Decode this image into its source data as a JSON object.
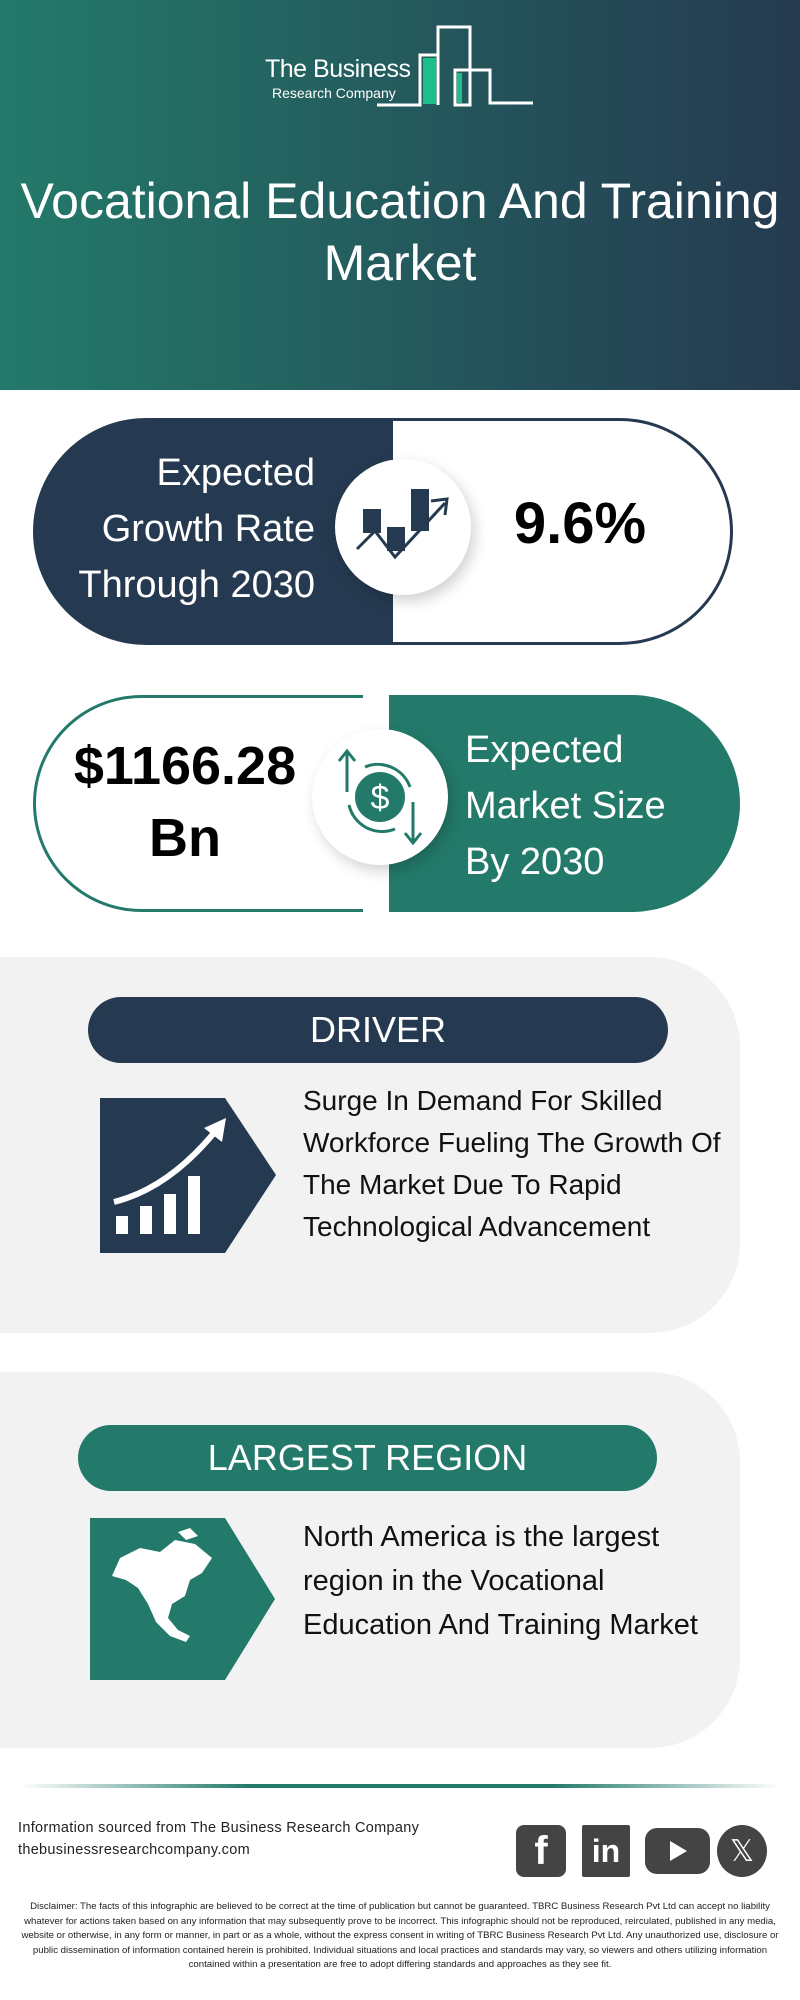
{
  "brand": {
    "line1": "The Business",
    "line2": "Research Company"
  },
  "title": "Vocational Education And Training Market",
  "growth": {
    "label_lines": [
      "Expected",
      "Growth Rate",
      "Through 2030"
    ],
    "value": "9.6%",
    "icon": "growth-chart-icon"
  },
  "market": {
    "value_lines": [
      "$1166.28",
      "Bn"
    ],
    "label_lines": [
      "Expected",
      "Market Size",
      "By 2030"
    ],
    "icon": "dollar-exchange-icon"
  },
  "driver": {
    "heading": "DRIVER",
    "text": "Surge In Demand For Skilled Workforce Fueling The Growth Of The Market Due To Rapid Technological Advancement",
    "icon": "rising-bars-icon"
  },
  "region": {
    "heading": "LARGEST REGION",
    "text": "North America is the largest region in the Vocational Education And Training Market",
    "icon": "north-america-map-icon"
  },
  "footer": {
    "source": "Information sourced from The Business Research Company",
    "website": "thebusinessresearchcompany.com",
    "social": [
      "facebook",
      "linkedin",
      "youtube",
      "x"
    ]
  },
  "disclaimer": "Disclaimer: The facts of this infographic are believed to be correct at the time of publication but cannot be guaranteed. TBRC Business Research Pvt Ltd can accept no liability whatever for actions taken based on any information that may subsequently prove to be incorrect. This infographic should not be reproduced, reirculated, published in any media, website or otherwise, in any form or manner, in part or as a whole, without the express consent in writing of TBRC Business Research Pvt Ltd. Any unauthorized use, disclosure or public dissemination of information contained herein is prohibited. Individual situations and local practices and standards may vary, so viewers and others utilizing information contained within a presentation are free to adopt differing standards and approaches as they see fit.",
  "colors": {
    "dark": "#253a50",
    "green": "#237a6a",
    "panel": "#f2f2f2",
    "accent": "#1dbf8a"
  }
}
